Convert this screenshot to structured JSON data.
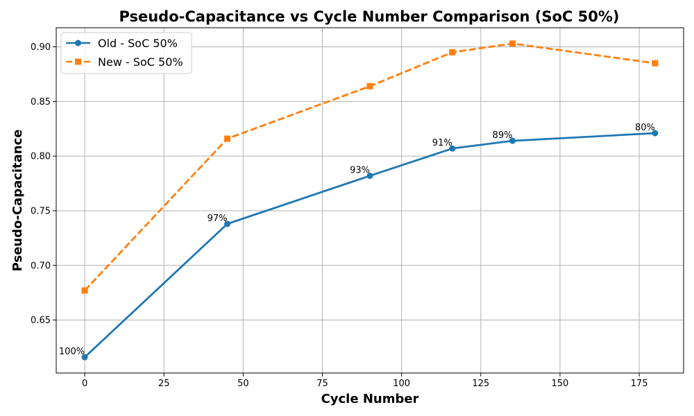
{
  "chart_data": {
    "type": "line",
    "title": "Pseudo-Capacitance vs Cycle Number Comparison (SoC 50%)",
    "xlabel": "Cycle Number",
    "ylabel": "Pseudo-Capacitance",
    "xlim": [
      -9,
      189
    ],
    "ylim": [
      0.6015,
      0.9175
    ],
    "xticks": [
      0,
      25,
      50,
      75,
      100,
      125,
      150,
      175
    ],
    "yticks": [
      0.65,
      0.7,
      0.75,
      0.8,
      0.85,
      0.9
    ],
    "grid": true,
    "legend_position": "top-left",
    "series": [
      {
        "name": "Old - SoC 50%",
        "color": "#1f77b4",
        "linestyle": "solid",
        "marker": "circle",
        "x": [
          0,
          45,
          90,
          116,
          135,
          180
        ],
        "y": [
          0.616,
          0.738,
          0.782,
          0.807,
          0.814,
          0.821
        ],
        "labels": [
          "100%",
          "97%",
          "93%",
          "91%",
          "89%",
          "80%"
        ]
      },
      {
        "name": "New - SoC 50%",
        "color": "#ff7f0e",
        "linestyle": "dashed",
        "marker": "square",
        "x": [
          0,
          45,
          90,
          116,
          135,
          180
        ],
        "y": [
          0.677,
          0.816,
          0.864,
          0.895,
          0.903,
          0.885
        ]
      }
    ]
  }
}
